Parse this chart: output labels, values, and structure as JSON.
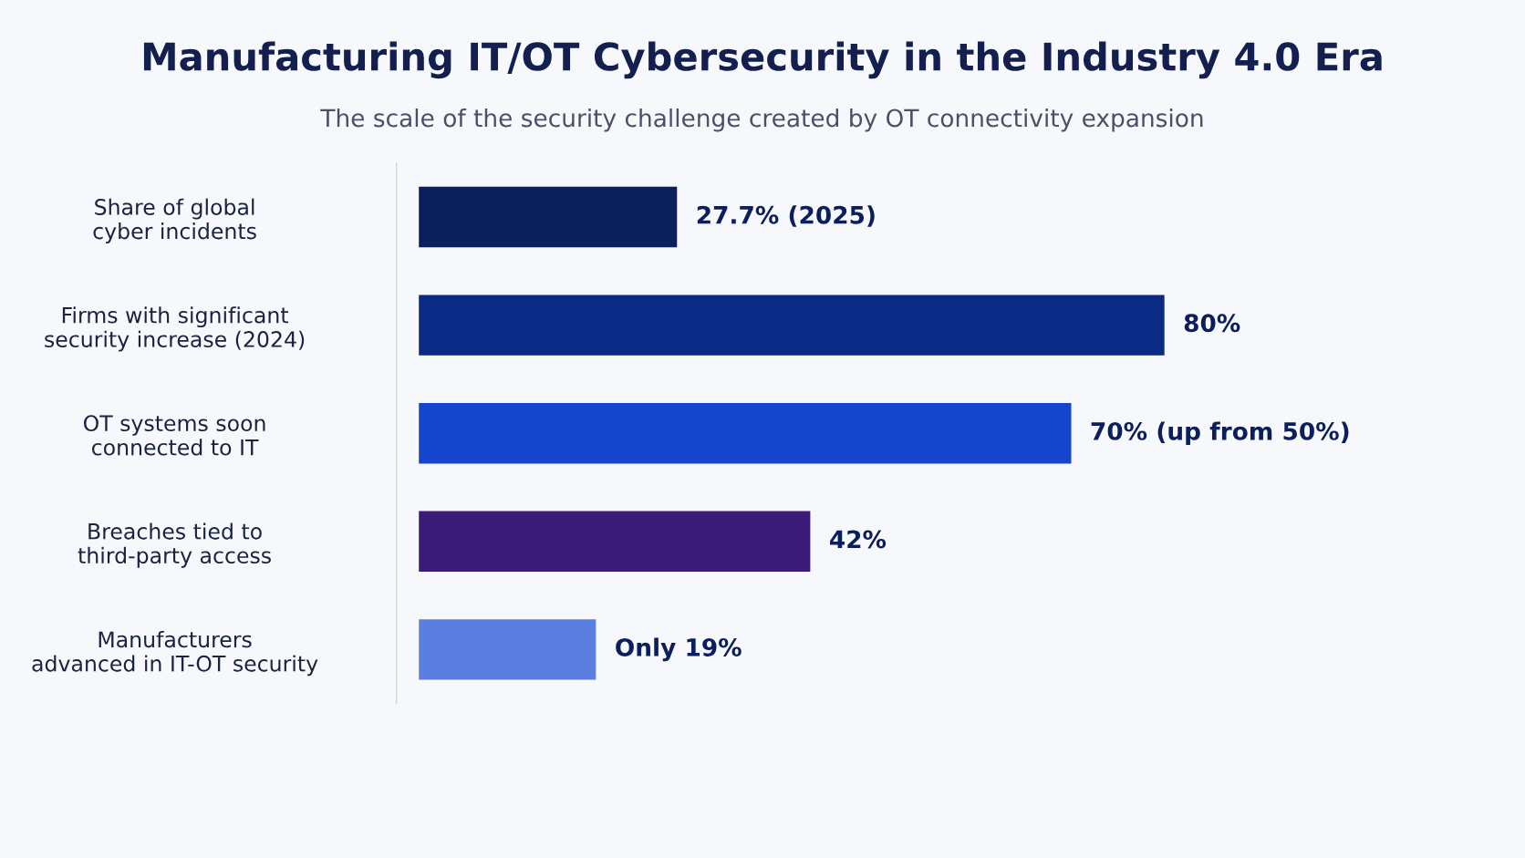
{
  "chart_data": {
    "type": "bar",
    "orientation": "horizontal",
    "title": "Manufacturing IT/OT Cybersecurity in the Industry 4.0 Era",
    "subtitle": "The scale of the security challenge created by OT connectivity expansion",
    "categories": [
      "Share of global\ncyber incidents",
      "Firms with significant\nsecurity increase (2024)",
      "OT systems soon\nconnected to IT",
      "Breaches tied to\nthird-party access",
      "Manufacturers\nadvanced in IT-OT security"
    ],
    "values": [
      27.7,
      80,
      70,
      42,
      19
    ],
    "colors": [
      "#0b1f5c",
      "#0a2a85",
      "#1545cc",
      "#3a1c78",
      "#5b7fe0"
    ],
    "value_labels": [
      "27.7% (2025)",
      "80%",
      "70% (up from 50%)",
      "42%",
      "Only 19%"
    ],
    "tick_labels": "y",
    "grid": false,
    "legend": false
  }
}
